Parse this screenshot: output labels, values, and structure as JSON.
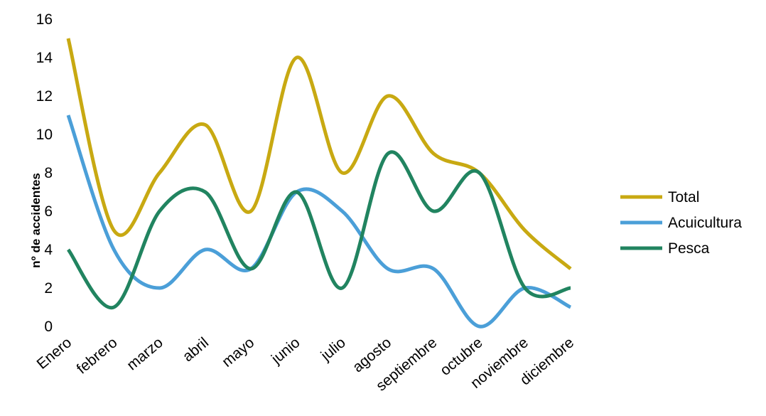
{
  "chart_data": {
    "type": "line",
    "title": "",
    "xlabel": "",
    "ylabel": "nº de accidentes",
    "ylim": [
      0,
      16
    ],
    "yticks": [
      0,
      2,
      4,
      6,
      8,
      10,
      12,
      14,
      16
    ],
    "grid": false,
    "legend_position": "right",
    "smooth": true,
    "categories": [
      "Enero",
      "febrero",
      "marzo",
      "abril",
      "mayo",
      "junio",
      "julio",
      "agosto",
      "septiembre",
      "octubre",
      "noviembre",
      "diciembre"
    ],
    "series": [
      {
        "name": "Total",
        "color": "#c8a912",
        "values": [
          15,
          5,
          8,
          10.5,
          6,
          14,
          8,
          12,
          9,
          8,
          5,
          3
        ]
      },
      {
        "name": "Acuicultura",
        "color": "#4b9fd8",
        "values": [
          11,
          4,
          2,
          4,
          3,
          7,
          6,
          3,
          3,
          0,
          2,
          1
        ]
      },
      {
        "name": "Pesca",
        "color": "#218460",
        "values": [
          4,
          1,
          6,
          7,
          3,
          7,
          2,
          9,
          6,
          8,
          2,
          2
        ]
      }
    ]
  }
}
